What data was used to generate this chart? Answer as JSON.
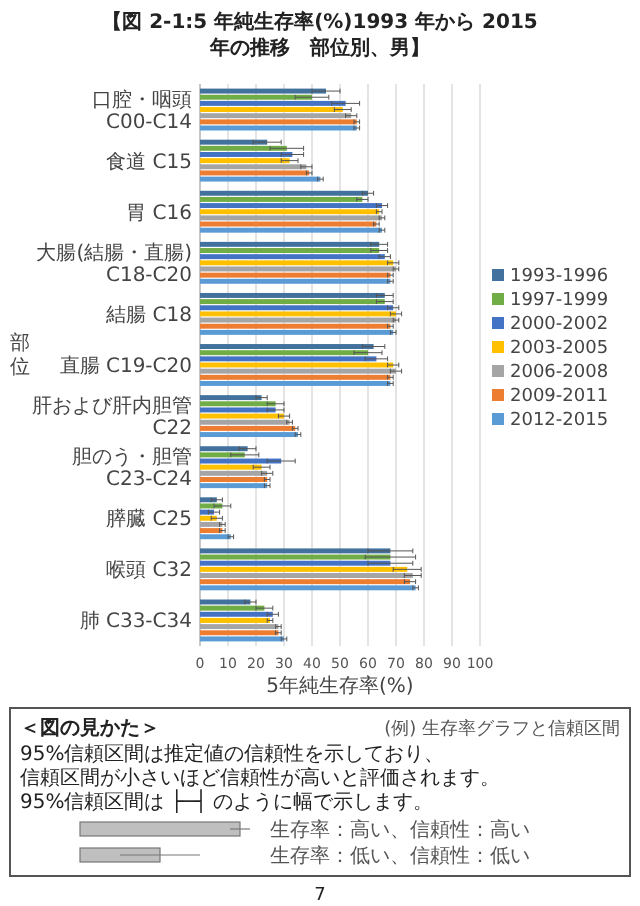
{
  "chart_data": {
    "type": "bar",
    "orientation": "horizontal",
    "title": "【図 2-1:5 年純生存率(%)1993 年から 2015 年の推移　部位別、男】",
    "xlabel": "5年純生存率(%)",
    "ylabel": "部位",
    "categories": [
      "口腔・咽頭 C00-C14",
      "食道 C15",
      "胃 C16",
      "大腸(結腸・直腸) C18-C20",
      "結腸 C18",
      "直腸 C19-C20",
      "肝および肝内胆管 C22",
      "胆のう・胆管 C23-C24",
      "膵臓 C25",
      "喉頭 C32",
      "肺 C33-C34"
    ],
    "series": [
      {
        "name": "1993-1996",
        "color": "#41719c",
        "values": [
          45,
          24,
          60,
          64,
          66,
          62,
          22,
          17,
          6,
          68,
          18
        ],
        "errors": [
          5,
          5,
          2,
          3,
          3,
          4,
          2,
          3,
          2,
          8,
          2
        ]
      },
      {
        "name": "1997-1999",
        "color": "#70ad47",
        "values": [
          40,
          31,
          58,
          64,
          66,
          60,
          27,
          16,
          8,
          68,
          23
        ],
        "errors": [
          6,
          6,
          2,
          3,
          3,
          5,
          3,
          5,
          3,
          9,
          3
        ]
      },
      {
        "name": "2000-2002",
        "color": "#4472c4",
        "values": [
          52,
          33,
          65,
          66,
          69,
          63,
          27,
          29,
          5,
          68,
          26
        ],
        "errors": [
          5,
          4,
          2,
          2,
          2,
          4,
          3,
          5,
          2,
          8,
          2
        ]
      },
      {
        "name": "2003-2005",
        "color": "#ffc000",
        "values": [
          51,
          32,
          64,
          69,
          70,
          69,
          30,
          22,
          6,
          74,
          25
        ],
        "errors": [
          3,
          3,
          1,
          2,
          2,
          2,
          2,
          3,
          2,
          5,
          1
        ]
      },
      {
        "name": "2006-2008",
        "color": "#a5a5a5",
        "values": [
          54,
          38,
          65,
          70,
          70,
          70,
          32,
          24,
          8,
          76,
          28
        ],
        "errors": [
          2,
          2,
          1,
          1,
          1,
          2,
          1,
          2,
          1,
          3,
          1
        ]
      },
      {
        "name": "2009-2011",
        "color": "#ed7d31",
        "values": [
          56,
          39,
          63,
          68,
          68,
          68,
          34,
          24,
          8,
          75,
          28
        ],
        "errors": [
          1,
          1,
          1,
          1,
          1,
          1,
          1,
          1,
          1,
          2,
          1
        ]
      },
      {
        "name": "2012-2015",
        "color": "#5b9bd5",
        "values": [
          56,
          43,
          65,
          68,
          69,
          68,
          35,
          24,
          11,
          77,
          30
        ],
        "errors": [
          1,
          1,
          1,
          1,
          1,
          1,
          1,
          1,
          1,
          1,
          1
        ]
      }
    ],
    "xlim": [
      0,
      100
    ],
    "xticks": [
      0,
      10,
      20,
      30,
      40,
      50,
      60,
      70,
      80,
      90,
      100
    ],
    "grid": "x",
    "legend": "right",
    "annotations": [
      "＜図の見かた＞",
      "95%信頼区間は推定値の信頼性を示しており、",
      "信頼区間が小さいほど信頼性が高いと評価されます。",
      "95%信頼区間は ├─┤ のように幅で示します。",
      "(例) 生存率グラフと信頼区間",
      "生存率：高い、信頼性：高い",
      "生存率：低い、信頼性：低い",
      "7"
    ]
  }
}
